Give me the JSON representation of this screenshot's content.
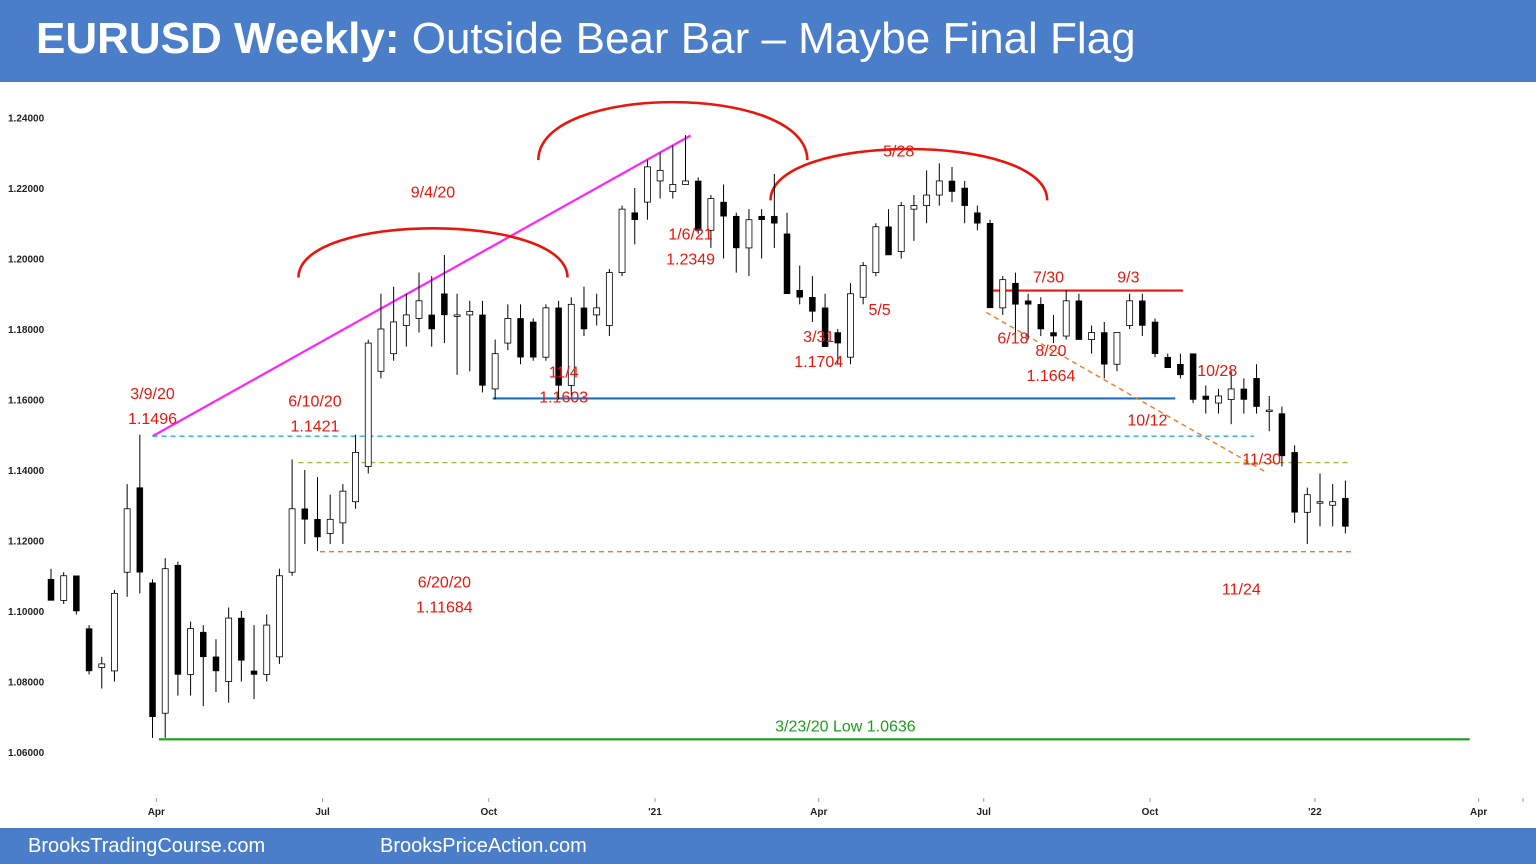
{
  "header": {
    "title_bold": "EURUSD Weekly:",
    "title_rest": " Outside Bear Bar – Maybe Final Flag"
  },
  "footer": {
    "left": "BrooksTradingCourse.com",
    "right": "BrooksPriceAction.com"
  },
  "colors": {
    "header_bg": "#4a7ec9",
    "bull_body": "#ffffff",
    "bear_body": "#000000",
    "annotation_red": "#e8160c",
    "trendline_magenta": "#ff22ff",
    "support_blue": "#1f6fc0",
    "low_line_green": "#1a9e1a",
    "dash_cyan": "#23aed6",
    "dash_olive": "#a6b53a",
    "dash_orange": "#f07a1e"
  },
  "chart_data": {
    "type": "candlestick",
    "title": "EURUSD Weekly: Outside Bear Bar – Maybe Final Flag",
    "timeframe": "weekly",
    "ylim": [
      1.056,
      1.244
    ],
    "yticks": [
      1.24,
      1.22,
      1.2,
      1.18,
      1.16,
      1.14,
      1.12,
      1.1,
      1.08,
      1.06
    ],
    "ytick_labels": [
      "1.24000",
      "1.22000",
      "1.20000",
      "1.18000",
      "1.16000",
      "1.14000",
      "1.12000",
      "1.10000",
      "1.08000",
      "1.06000"
    ],
    "xticks": [
      {
        "label": "Apr",
        "bar": 8.3
      },
      {
        "label": "Jul",
        "bar": 21.4
      },
      {
        "label": "Oct",
        "bar": 34.5
      },
      {
        "label": "'21",
        "bar": 47.6
      },
      {
        "label": "Apr",
        "bar": 60.5
      },
      {
        "label": "Jul",
        "bar": 73.5
      },
      {
        "label": "Oct",
        "bar": 86.6
      },
      {
        "label": "'22",
        "bar": 99.6
      },
      {
        "label": "Apr",
        "bar": 112.5
      },
      {
        "label": "",
        "bar": 116.0
      }
    ],
    "candles": [
      [
        1.109,
        1.112,
        1.103,
        1.103
      ],
      [
        1.103,
        1.111,
        1.102,
        1.11
      ],
      [
        1.11,
        1.11,
        1.099,
        1.1
      ],
      [
        1.095,
        1.096,
        1.082,
        1.083
      ],
      [
        1.084,
        1.087,
        1.078,
        1.085
      ],
      [
        1.083,
        1.106,
        1.08,
        1.105
      ],
      [
        1.111,
        1.136,
        1.104,
        1.129
      ],
      [
        1.135,
        1.15,
        1.105,
        1.111
      ],
      [
        1.108,
        1.109,
        1.064,
        1.07
      ],
      [
        1.071,
        1.115,
        1.064,
        1.112
      ],
      [
        1.113,
        1.114,
        1.076,
        1.082
      ],
      [
        1.082,
        1.097,
        1.076,
        1.095
      ],
      [
        1.094,
        1.096,
        1.073,
        1.087
      ],
      [
        1.087,
        1.092,
        1.077,
        1.083
      ],
      [
        1.08,
        1.101,
        1.074,
        1.098
      ],
      [
        1.098,
        1.1,
        1.08,
        1.086
      ],
      [
        1.083,
        1.096,
        1.075,
        1.082
      ],
      [
        1.082,
        1.099,
        1.08,
        1.096
      ],
      [
        1.087,
        1.112,
        1.085,
        1.11
      ],
      [
        1.111,
        1.143,
        1.11,
        1.129
      ],
      [
        1.129,
        1.14,
        1.119,
        1.126
      ],
      [
        1.126,
        1.138,
        1.117,
        1.121
      ],
      [
        1.122,
        1.133,
        1.119,
        1.126
      ],
      [
        1.125,
        1.136,
        1.119,
        1.134
      ],
      [
        1.131,
        1.15,
        1.129,
        1.145
      ],
      [
        1.141,
        1.177,
        1.139,
        1.176
      ],
      [
        1.168,
        1.19,
        1.166,
        1.18
      ],
      [
        1.173,
        1.192,
        1.171,
        1.182
      ],
      [
        1.181,
        1.19,
        1.175,
        1.184
      ],
      [
        1.183,
        1.196,
        1.179,
        1.188
      ],
      [
        1.184,
        1.195,
        1.175,
        1.18
      ],
      [
        1.19,
        1.201,
        1.176,
        1.184
      ],
      [
        1.184,
        1.19,
        1.167,
        1.184
      ],
      [
        1.184,
        1.188,
        1.168,
        1.185
      ],
      [
        1.184,
        1.188,
        1.162,
        1.164
      ],
      [
        1.163,
        1.177,
        1.16,
        1.173
      ],
      [
        1.176,
        1.187,
        1.174,
        1.183
      ],
      [
        1.183,
        1.187,
        1.17,
        1.172
      ],
      [
        1.182,
        1.183,
        1.171,
        1.172
      ],
      [
        1.172,
        1.187,
        1.171,
        1.186
      ],
      [
        1.186,
        1.188,
        1.16,
        1.164
      ],
      [
        1.164,
        1.189,
        1.161,
        1.187
      ],
      [
        1.186,
        1.192,
        1.178,
        1.18
      ],
      [
        1.184,
        1.19,
        1.181,
        1.186
      ],
      [
        1.181,
        1.197,
        1.178,
        1.196
      ],
      [
        1.196,
        1.215,
        1.195,
        1.214
      ],
      [
        1.213,
        1.22,
        1.204,
        1.211
      ],
      [
        1.216,
        1.228,
        1.211,
        1.226
      ],
      [
        1.222,
        1.23,
        1.217,
        1.225
      ],
      [
        1.219,
        1.232,
        1.217,
        1.221
      ],
      [
        1.221,
        1.235,
        1.221,
        1.222
      ],
      [
        1.222,
        1.223,
        1.207,
        1.208
      ],
      [
        1.208,
        1.218,
        1.203,
        1.217
      ],
      [
        1.216,
        1.221,
        1.2,
        1.212
      ],
      [
        1.212,
        1.213,
        1.196,
        1.203
      ],
      [
        1.203,
        1.214,
        1.195,
        1.211
      ],
      [
        1.212,
        1.214,
        1.2,
        1.211
      ],
      [
        1.212,
        1.224,
        1.203,
        1.21
      ],
      [
        1.207,
        1.213,
        1.19,
        1.19
      ],
      [
        1.191,
        1.198,
        1.187,
        1.189
      ],
      [
        1.189,
        1.195,
        1.182,
        1.185
      ],
      [
        1.186,
        1.19,
        1.175,
        1.175
      ],
      [
        1.179,
        1.18,
        1.17,
        1.176
      ],
      [
        1.172,
        1.193,
        1.17,
        1.19
      ],
      [
        1.189,
        1.199,
        1.187,
        1.198
      ],
      [
        1.196,
        1.21,
        1.195,
        1.209
      ],
      [
        1.209,
        1.214,
        1.201,
        1.201
      ],
      [
        1.202,
        1.216,
        1.2,
        1.215
      ],
      [
        1.214,
        1.218,
        1.205,
        1.215
      ],
      [
        1.215,
        1.225,
        1.21,
        1.218
      ],
      [
        1.218,
        1.227,
        1.215,
        1.222
      ],
      [
        1.222,
        1.226,
        1.216,
        1.219
      ],
      [
        1.22,
        1.222,
        1.21,
        1.215
      ],
      [
        1.213,
        1.215,
        1.208,
        1.21
      ],
      [
        1.21,
        1.211,
        1.186,
        1.186
      ],
      [
        1.186,
        1.195,
        1.184,
        1.194
      ],
      [
        1.193,
        1.196,
        1.177,
        1.187
      ],
      [
        1.188,
        1.19,
        1.177,
        1.187
      ],
      [
        1.187,
        1.189,
        1.178,
        1.18
      ],
      [
        1.179,
        1.184,
        1.176,
        1.178
      ],
      [
        1.178,
        1.191,
        1.177,
        1.188
      ],
      [
        1.188,
        1.19,
        1.177,
        1.177
      ],
      [
        1.177,
        1.181,
        1.173,
        1.179
      ],
      [
        1.179,
        1.182,
        1.166,
        1.17
      ],
      [
        1.17,
        1.179,
        1.168,
        1.179
      ],
      [
        1.181,
        1.19,
        1.18,
        1.188
      ],
      [
        1.188,
        1.19,
        1.178,
        1.181
      ],
      [
        1.182,
        1.183,
        1.172,
        1.173
      ],
      [
        1.172,
        1.173,
        1.17,
        1.169
      ],
      [
        1.17,
        1.173,
        1.166,
        1.167
      ],
      [
        1.173,
        1.173,
        1.159,
        1.16
      ],
      [
        1.161,
        1.164,
        1.156,
        1.16
      ],
      [
        1.159,
        1.163,
        1.156,
        1.161
      ],
      [
        1.16,
        1.168,
        1.153,
        1.163
      ],
      [
        1.163,
        1.166,
        1.156,
        1.16
      ],
      [
        1.166,
        1.17,
        1.156,
        1.158
      ],
      [
        1.157,
        1.161,
        1.151,
        1.157
      ],
      [
        1.156,
        1.158,
        1.141,
        1.144
      ],
      [
        1.145,
        1.147,
        1.125,
        1.128
      ],
      [
        1.128,
        1.135,
        1.119,
        1.133
      ],
      [
        1.131,
        1.139,
        1.124,
        1.131
      ],
      [
        1.13,
        1.136,
        1.124,
        1.131
      ],
      [
        1.132,
        1.137,
        1.122,
        1.124
      ]
    ],
    "annotations": [
      {
        "text": "3/9/20",
        "bar": 8.0,
        "price": 1.1496,
        "dy": -43
      },
      {
        "text": "1.1496",
        "bar": 8.0,
        "price": 1.1496,
        "dy": -18
      },
      {
        "text": "6/10/20",
        "bar": 20.8,
        "price": 1.1421,
        "dy": -62
      },
      {
        "text": "1.1421",
        "bar": 20.8,
        "price": 1.1421,
        "dy": -37
      },
      {
        "text": "9/4/20",
        "bar": 30.1,
        "price": 1.2014,
        "dy": -62
      },
      {
        "text": "1/6/21",
        "bar": 50.4,
        "price": 1.2349,
        "dy": 98
      },
      {
        "text": "1.2349",
        "bar": 50.4,
        "price": 1.2349,
        "dy": 123
      },
      {
        "text": "5/28",
        "bar": 66.8,
        "price": 1.2266,
        "dy": -14
      },
      {
        "text": "5/5",
        "bar": 65.3,
        "price": 1.1896,
        "dy": 14
      },
      {
        "text": "6/18",
        "bar": 75.8,
        "price": 1.1847,
        "dy": 25
      },
      {
        "text": "7/30",
        "bar": 78.6,
        "price": 1.1909,
        "dy": -14
      },
      {
        "text": "9/3",
        "bar": 84.9,
        "price": 1.1909,
        "dy": -14
      },
      {
        "text": "10/28",
        "bar": 91.9,
        "price": 1.1692,
        "dy": 3
      },
      {
        "text": "11/30",
        "bar": 95.4,
        "price": 1.1464,
        "dy": 11
      },
      {
        "text": "11/4",
        "bar": 40.4,
        "price": 1.1603,
        "dy": -27
      },
      {
        "text": "1.1603",
        "bar": 40.4,
        "price": 1.1603,
        "dy": -2
      },
      {
        "text": "3/31",
        "bar": 60.5,
        "price": 1.1704,
        "dy": -27
      },
      {
        "text": "1.1704",
        "bar": 60.5,
        "price": 1.1704,
        "dy": -2
      },
      {
        "text": "8/20",
        "bar": 78.8,
        "price": 1.1664,
        "dy": -27
      },
      {
        "text": "1.1664",
        "bar": 78.8,
        "price": 1.1664,
        "dy": -2
      },
      {
        "text": "10/12",
        "bar": 86.4,
        "price": 1.1524,
        "dy": -7
      },
      {
        "text": "6/20/20",
        "bar": 31.0,
        "price": 1.11684,
        "dy": 30
      },
      {
        "text": "1.11684",
        "bar": 31.0,
        "price": 1.11684,
        "dy": 55
      },
      {
        "text": "11/24",
        "bar": 93.8,
        "price": 1.1186,
        "dy": 43
      },
      {
        "text": "3/23/20 Low 1.0636",
        "bar": 62.6,
        "price": 1.0636,
        "dy": -14
      }
    ],
    "lines": [
      {
        "name": "wedge-trendline",
        "style": "solid",
        "color": "#ff22ff",
        "from": [
          8,
          1.1496
        ],
        "to": [
          50.4,
          1.2349
        ]
      },
      {
        "name": "support-line-1.16",
        "style": "solid",
        "color": "#1f6fc0",
        "from": [
          34.8,
          1.1603
        ],
        "to": [
          88.6,
          1.1603
        ]
      },
      {
        "name": "resistance-line-1.19",
        "style": "solid",
        "color": "#e8160c",
        "from": [
          74.1,
          1.1909
        ],
        "to": [
          89.2,
          1.1909
        ]
      },
      {
        "name": "low-line-1.0636",
        "style": "solid",
        "color": "#1a9e1a",
        "from": [
          8.5,
          1.0636
        ],
        "to": [
          111.8,
          1.0636
        ]
      },
      {
        "name": "dash-line-1.1496",
        "style": "dashed",
        "color": "#23aed6",
        "from": [
          8,
          1.1496
        ],
        "to": [
          94.8,
          1.1496
        ]
      },
      {
        "name": "dash-line-1.1421",
        "style": "dashed",
        "color": "#a6b53a",
        "from": [
          19.5,
          1.1421
        ],
        "to": [
          102.5,
          1.1421
        ]
      },
      {
        "name": "dash-line-1.11684",
        "style": "dashed",
        "color": "#f07a1e",
        "from": [
          21.2,
          1.11684
        ],
        "to": [
          102.5,
          1.11684
        ]
      },
      {
        "name": "bear-channel-line",
        "style": "dashed",
        "color": "#f07a1e",
        "from": [
          73.7,
          1.1847
        ],
        "to": [
          95.6,
          1.1397
        ]
      }
    ],
    "arcs": [
      {
        "name": "top-arc-9-4-20",
        "color": "#e8160c",
        "cx_bar": 30.1,
        "top_price": 1.2086,
        "bottom_price": 1.1946,
        "half_width_bars": 10.6
      },
      {
        "name": "top-arc-1-6-21",
        "color": "#e8160c",
        "cx_bar": 49.0,
        "top_price": 1.2444,
        "bottom_price": 1.2279,
        "half_width_bars": 10.6
      },
      {
        "name": "top-arc-5-28",
        "color": "#e8160c",
        "cx_bar": 67.6,
        "top_price": 1.2311,
        "bottom_price": 1.2165,
        "half_width_bars": 10.9
      }
    ]
  }
}
